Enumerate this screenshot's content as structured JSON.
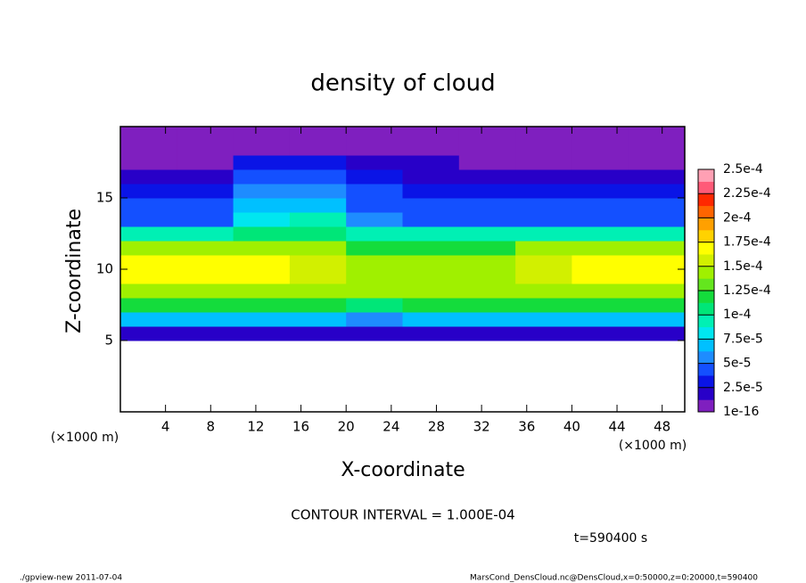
{
  "chart_data": {
    "type": "heatmap",
    "title": "density of cloud",
    "x_label": "X-coordinate",
    "y_label": "Z-coordinate",
    "x_unit_label": "(×1000 m)",
    "contour_text": "CONTOUR INTERVAL = 1.000E-04",
    "time_text": "t=590400 s",
    "footer_left": "./gpview-new  2011-07-04",
    "footer_right": "MarsCond_DensCloud.nc@DensCloud,x=0:50000,z=0:20000,t=590400",
    "xlim": [
      0,
      50
    ],
    "ylim": [
      0,
      20
    ],
    "xticks": [
      4,
      8,
      12,
      16,
      20,
      24,
      28,
      32,
      36,
      40,
      44,
      48
    ],
    "yticks": [
      5,
      10,
      15
    ],
    "x_edges": [
      0,
      5,
      10,
      15,
      20,
      25,
      30,
      35,
      40,
      45,
      50
    ],
    "z_edges": [
      5,
      6,
      7,
      8,
      9,
      10,
      11,
      12,
      13,
      14,
      15,
      16,
      17,
      18,
      19,
      20
    ],
    "z": [
      [
        2e-05,
        2e-05,
        2e-05,
        2e-05,
        2e-05,
        2e-05,
        2e-05,
        2e-05,
        2e-05,
        2e-05
      ],
      [
        7e-05,
        7e-05,
        7e-05,
        7e-05,
        6e-05,
        7e-05,
        7e-05,
        7e-05,
        7e-05,
        7e-05
      ],
      [
        0.00012,
        0.00012,
        0.00012,
        0.00012,
        0.00011,
        0.00012,
        0.00012,
        0.00012,
        0.00012,
        0.00012
      ],
      [
        0.00015,
        0.00015,
        0.00015,
        0.00015,
        0.00014,
        0.00014,
        0.00014,
        0.00015,
        0.00015,
        0.00015
      ],
      [
        0.00017,
        0.00017,
        0.00017,
        0.00016,
        0.00014,
        0.00014,
        0.00014,
        0.00016,
        0.00017,
        0.00017
      ],
      [
        0.00017,
        0.00017,
        0.00017,
        0.00016,
        0.00014,
        0.00014,
        0.00014,
        0.00016,
        0.00017,
        0.00017
      ],
      [
        0.00014,
        0.00014,
        0.00014,
        0.00014,
        0.00012,
        0.00012,
        0.00012,
        0.00014,
        0.00014,
        0.00014
      ],
      [
        9e-05,
        9e-05,
        0.00011,
        0.00011,
        9e-05,
        9e-05,
        9e-05,
        9e-05,
        9e-05,
        9e-05
      ],
      [
        5e-05,
        5e-05,
        8e-05,
        9e-05,
        6e-05,
        5e-05,
        5e-05,
        5e-05,
        5e-05,
        5e-05
      ],
      [
        4e-05,
        4e-05,
        7e-05,
        7e-05,
        5e-05,
        4e-05,
        4e-05,
        4e-05,
        4e-05,
        4e-05
      ],
      [
        3e-05,
        3e-05,
        6e-05,
        6e-05,
        4e-05,
        3e-05,
        3e-05,
        3e-05,
        3.5e-05,
        3.5e-05
      ],
      [
        2e-05,
        2e-05,
        4e-05,
        4e-05,
        3e-05,
        2e-05,
        2e-05,
        2e-05,
        2e-05,
        2e-05
      ],
      [
        1e-05,
        1e-05,
        3e-05,
        3e-05,
        2e-05,
        2e-05,
        1e-05,
        1e-05,
        1e-05,
        1e-05
      ],
      [
        5e-06,
        5e-06,
        1e-05,
        1e-05,
        1e-05,
        5e-06,
        5e-06,
        5e-06,
        5e-06,
        5e-06
      ],
      [
        2e-06,
        2e-06,
        2e-06,
        2e-06,
        2e-06,
        2e-06,
        2e-06,
        2e-06,
        2e-06,
        2e-06
      ]
    ],
    "colorbar_ticks": [
      {
        "value": 1e-16,
        "label": "1e-16"
      },
      {
        "value": 2.5e-05,
        "label": "2.5e-5"
      },
      {
        "value": 5e-05,
        "label": "5e-5"
      },
      {
        "value": 7.5e-05,
        "label": "7.5e-5"
      },
      {
        "value": 0.0001,
        "label": "1e-4"
      },
      {
        "value": 0.000125,
        "label": "1.25e-4"
      },
      {
        "value": 0.00015,
        "label": "1.5e-4"
      },
      {
        "value": 0.000175,
        "label": "1.75e-4"
      },
      {
        "value": 0.0002,
        "label": "2e-4"
      },
      {
        "value": 0.000225,
        "label": "2.25e-4"
      },
      {
        "value": 0.00025,
        "label": "2.5e-4"
      }
    ],
    "colors": [
      "#7f1fbf",
      "#2800c8",
      "#0a14e6",
      "#1450ff",
      "#1e8cff",
      "#00c0ff",
      "#00e6f0",
      "#00f0b4",
      "#00e678",
      "#14dc3c",
      "#64e61e",
      "#a0f000",
      "#d2f000",
      "#ffff00",
      "#ffd200",
      "#ffa000",
      "#ff6400",
      "#ff2800",
      "#ff5a78",
      "#ffa0b4"
    ]
  }
}
